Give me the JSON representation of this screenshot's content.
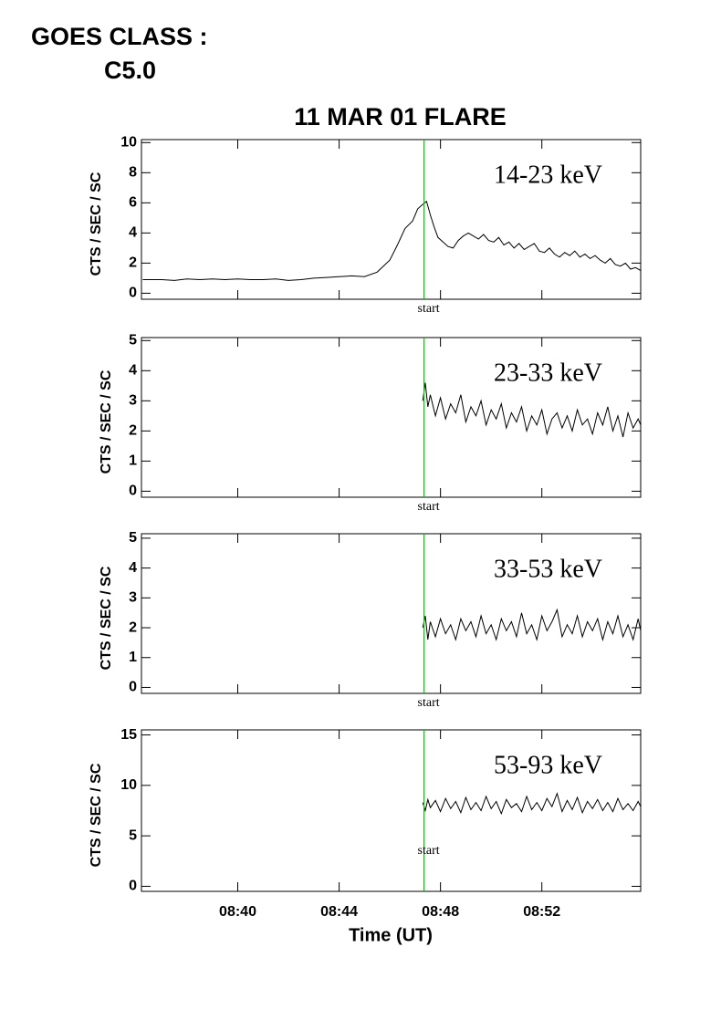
{
  "header": {
    "goes_label": "GOES CLASS :",
    "goes_class": "C5.0"
  },
  "chart_data": [
    {
      "type": "line",
      "title": "11 MAR 01 FLARE",
      "ylabel": "CTS / SEC / SC",
      "annotation": "14-23 keV",
      "color": "#000000",
      "start_time": 47.35,
      "start_label": "start",
      "start_color": "#00cc00",
      "xlim": [
        36.2,
        55.9
      ],
      "ylim": [
        -0.4,
        10.2
      ],
      "yticks": [
        0,
        2,
        4,
        6,
        8,
        10
      ],
      "x": [
        36.25,
        37,
        37.5,
        38,
        38.5,
        39,
        39.5,
        40,
        40.5,
        41,
        41.5,
        42,
        42.5,
        43,
        43.5,
        44,
        44.5,
        45,
        45.5,
        46,
        46.3,
        46.6,
        46.9,
        47.1,
        47.3,
        47.45,
        47.6,
        47.75,
        47.9,
        48.1,
        48.3,
        48.5,
        48.7,
        48.9,
        49.1,
        49.3,
        49.5,
        49.7,
        49.9,
        50.1,
        50.3,
        50.5,
        50.7,
        50.9,
        51.1,
        51.3,
        51.5,
        51.7,
        51.9,
        52.1,
        52.3,
        52.5,
        52.7,
        52.9,
        53.1,
        53.3,
        53.5,
        53.7,
        53.9,
        54.1,
        54.3,
        54.5,
        54.7,
        54.9,
        55.1,
        55.3,
        55.5,
        55.7,
        55.9
      ],
      "values": [
        0.9,
        0.9,
        0.85,
        0.95,
        0.9,
        0.95,
        0.9,
        0.95,
        0.9,
        0.9,
        0.95,
        0.85,
        0.9,
        1.0,
        1.05,
        1.1,
        1.15,
        1.1,
        1.4,
        2.2,
        3.2,
        4.3,
        4.8,
        5.6,
        5.9,
        6.1,
        5.2,
        4.4,
        3.7,
        3.4,
        3.1,
        3.0,
        3.5,
        3.8,
        4.0,
        3.8,
        3.6,
        3.9,
        3.5,
        3.4,
        3.7,
        3.2,
        3.4,
        3.0,
        3.3,
        2.9,
        3.1,
        3.3,
        2.8,
        2.7,
        3.0,
        2.6,
        2.4,
        2.7,
        2.5,
        2.8,
        2.4,
        2.6,
        2.3,
        2.5,
        2.2,
        2.0,
        2.3,
        1.9,
        1.8,
        2.0,
        1.6,
        1.7,
        1.5
      ]
    },
    {
      "type": "line",
      "ylabel": "CTS / SEC / SC",
      "annotation": "23-33 keV",
      "color": "#000000",
      "start_time": 47.35,
      "start_label": "start",
      "start_color": "#00cc00",
      "xlim": [
        36.2,
        55.9
      ],
      "ylim": [
        -0.2,
        5.1
      ],
      "yticks": [
        0,
        1,
        2,
        3,
        4,
        5
      ],
      "x": [
        47.3,
        47.4,
        47.5,
        47.6,
        47.8,
        48.0,
        48.2,
        48.4,
        48.6,
        48.8,
        49.0,
        49.2,
        49.4,
        49.6,
        49.8,
        50.0,
        50.2,
        50.4,
        50.6,
        50.8,
        51.0,
        51.2,
        51.4,
        51.6,
        51.8,
        52.0,
        52.2,
        52.4,
        52.6,
        52.8,
        53.0,
        53.2,
        53.4,
        53.6,
        53.8,
        54.0,
        54.2,
        54.4,
        54.6,
        54.8,
        55.0,
        55.2,
        55.4,
        55.6,
        55.8,
        55.9
      ],
      "values": [
        3.0,
        3.6,
        2.8,
        3.2,
        2.5,
        3.1,
        2.4,
        2.9,
        2.6,
        3.2,
        2.3,
        2.8,
        2.5,
        3.0,
        2.2,
        2.7,
        2.4,
        2.9,
        2.1,
        2.6,
        2.3,
        2.8,
        2.0,
        2.5,
        2.2,
        2.7,
        1.9,
        2.4,
        2.6,
        2.1,
        2.5,
        2.0,
        2.7,
        2.2,
        2.4,
        1.9,
        2.6,
        2.2,
        2.8,
        2.0,
        2.5,
        1.8,
        2.6,
        2.1,
        2.4,
        2.2
      ]
    },
    {
      "type": "line",
      "ylabel": "CTS / SEC / SC",
      "annotation": "33-53 keV",
      "color": "#000000",
      "start_time": 47.35,
      "start_label": "start",
      "start_color": "#00cc00",
      "xlim": [
        36.2,
        55.9
      ],
      "ylim": [
        -0.2,
        5.15
      ],
      "yticks": [
        0,
        1,
        2,
        3,
        4,
        5
      ],
      "x": [
        47.3,
        47.4,
        47.5,
        47.6,
        47.8,
        48.0,
        48.2,
        48.4,
        48.6,
        48.8,
        49.0,
        49.2,
        49.4,
        49.6,
        49.8,
        50.0,
        50.2,
        50.4,
        50.6,
        50.8,
        51.0,
        51.2,
        51.4,
        51.6,
        51.8,
        52.0,
        52.2,
        52.4,
        52.6,
        52.8,
        53.0,
        53.2,
        53.4,
        53.6,
        53.8,
        54.0,
        54.2,
        54.4,
        54.6,
        54.8,
        55.0,
        55.2,
        55.4,
        55.6,
        55.8,
        55.9
      ],
      "values": [
        2.0,
        2.4,
        1.6,
        2.2,
        1.7,
        2.3,
        1.8,
        2.1,
        1.6,
        2.3,
        1.9,
        2.2,
        1.7,
        2.4,
        1.8,
        2.1,
        1.6,
        2.3,
        1.9,
        2.2,
        1.7,
        2.5,
        1.8,
        2.1,
        1.6,
        2.4,
        1.9,
        2.2,
        2.6,
        1.7,
        2.1,
        1.8,
        2.4,
        1.7,
        2.2,
        1.9,
        2.3,
        1.6,
        2.2,
        1.8,
        2.4,
        1.7,
        2.1,
        1.6,
        2.3,
        1.9
      ]
    },
    {
      "type": "line",
      "ylabel": "CTS / SEC / SC",
      "annotation": "53-93 keV",
      "xlabel": "Time (UT)",
      "color": "#000000",
      "start_time": 47.35,
      "start_label": "start",
      "start_color": "#00cc00",
      "xlim": [
        36.2,
        55.9
      ],
      "ylim": [
        -0.5,
        15.5
      ],
      "yticks": [
        0,
        5,
        10,
        15
      ],
      "xticks": [
        {
          "value": 40,
          "label": "08:40"
        },
        {
          "value": 44,
          "label": "08:44"
        },
        {
          "value": 48,
          "label": "08:48"
        },
        {
          "value": 52,
          "label": "08:52"
        }
      ],
      "x": [
        47.3,
        47.4,
        47.5,
        47.6,
        47.8,
        48.0,
        48.2,
        48.4,
        48.6,
        48.8,
        49.0,
        49.2,
        49.4,
        49.6,
        49.8,
        50.0,
        50.2,
        50.4,
        50.6,
        50.8,
        51.0,
        51.2,
        51.4,
        51.6,
        51.8,
        52.0,
        52.2,
        52.4,
        52.6,
        52.8,
        53.0,
        53.2,
        53.4,
        53.6,
        53.8,
        54.0,
        54.2,
        54.4,
        54.6,
        54.8,
        55.0,
        55.2,
        55.4,
        55.6,
        55.8,
        55.9
      ],
      "values": [
        8.3,
        7.5,
        8.6,
        7.8,
        8.5,
        7.4,
        8.7,
        7.7,
        8.4,
        7.3,
        8.8,
        7.6,
        8.3,
        7.5,
        8.9,
        7.7,
        8.4,
        7.2,
        8.6,
        7.8,
        8.2,
        7.4,
        8.9,
        7.6,
        8.3,
        7.5,
        8.7,
        7.9,
        9.2,
        7.4,
        8.5,
        7.6,
        8.8,
        7.3,
        8.4,
        7.7,
        8.6,
        7.5,
        8.3,
        7.4,
        8.7,
        7.6,
        8.2,
        7.5,
        8.4,
        7.9
      ]
    }
  ]
}
